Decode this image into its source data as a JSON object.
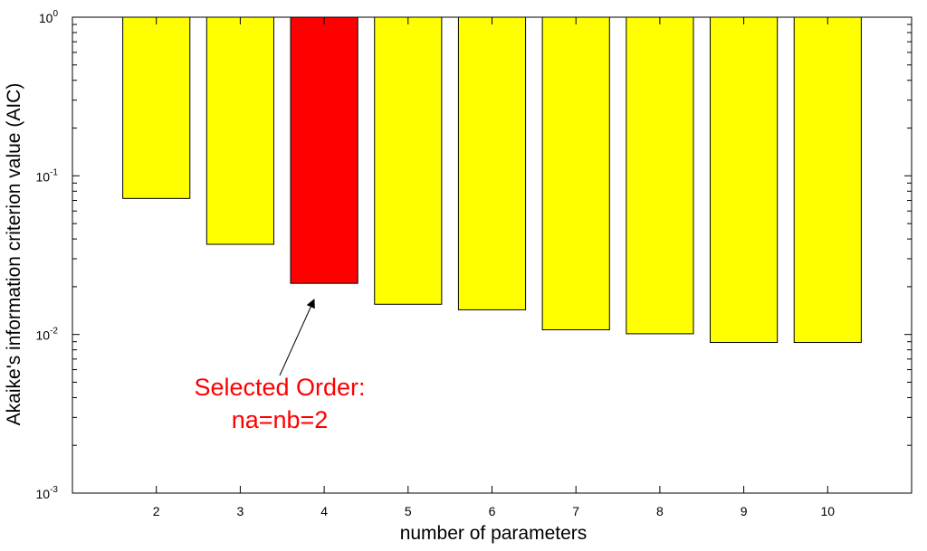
{
  "chart_data": {
    "type": "bar",
    "xlabel": "number of parameters",
    "ylabel": "Akaike's information criterion value (AIC)",
    "yscale": "log",
    "ylim": [
      0.001,
      1
    ],
    "xlim": [
      1,
      11
    ],
    "categories": [
      "2",
      "3",
      "4",
      "5",
      "6",
      "7",
      "8",
      "9",
      "10"
    ],
    "x": [
      2,
      3,
      4,
      5,
      6,
      7,
      8,
      9,
      10
    ],
    "values": [
      0.072,
      0.037,
      0.021,
      0.0155,
      0.0143,
      0.0107,
      0.0101,
      0.0089,
      0.0089
    ],
    "highlight_index": 2,
    "colors": {
      "bar": "#ffff00",
      "highlight": "#ff0000",
      "edge": "#000000"
    },
    "y_ticks": [
      {
        "value": 0.001,
        "base": "10",
        "exp": "-3"
      },
      {
        "value": 0.01,
        "base": "10",
        "exp": "-2"
      },
      {
        "value": 0.1,
        "base": "10",
        "exp": "-1"
      },
      {
        "value": 1,
        "base": "10",
        "exp": "0"
      }
    ],
    "annotation": {
      "lines": [
        "Selected Order:",
        "na=nb=2"
      ],
      "color": "#ff0000"
    },
    "grid": false,
    "legend": "none"
  }
}
